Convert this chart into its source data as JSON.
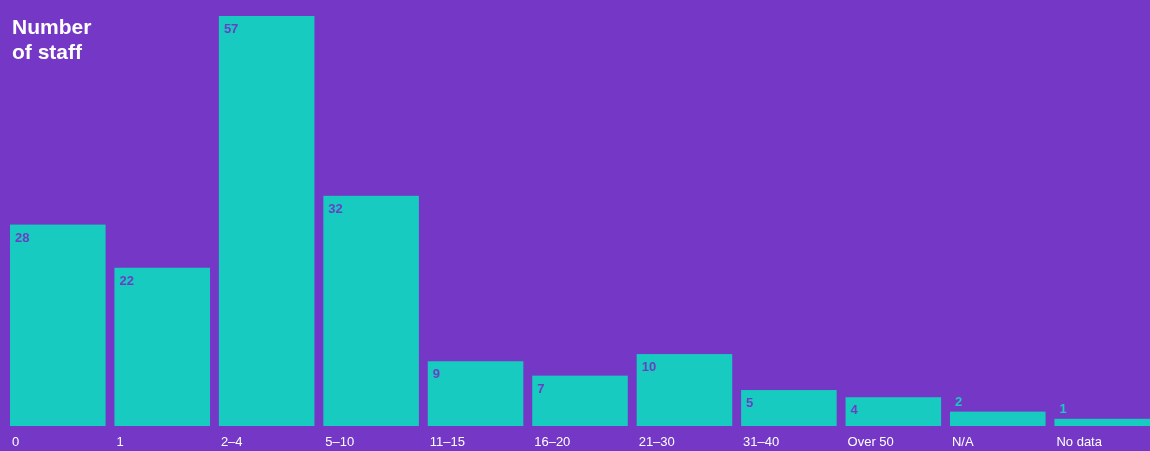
{
  "chart_data": {
    "type": "bar",
    "title": "Number of staff",
    "categories": [
      "0",
      "1",
      "2–4",
      "5–10",
      "11–15",
      "16–20",
      "21–30",
      "31–40",
      "Over 50",
      "N/A",
      "No data"
    ],
    "values": [
      28,
      22,
      57,
      32,
      9,
      7,
      10,
      5,
      4,
      2,
      1
    ],
    "color": "#17cbc0",
    "data_labels": true
  }
}
